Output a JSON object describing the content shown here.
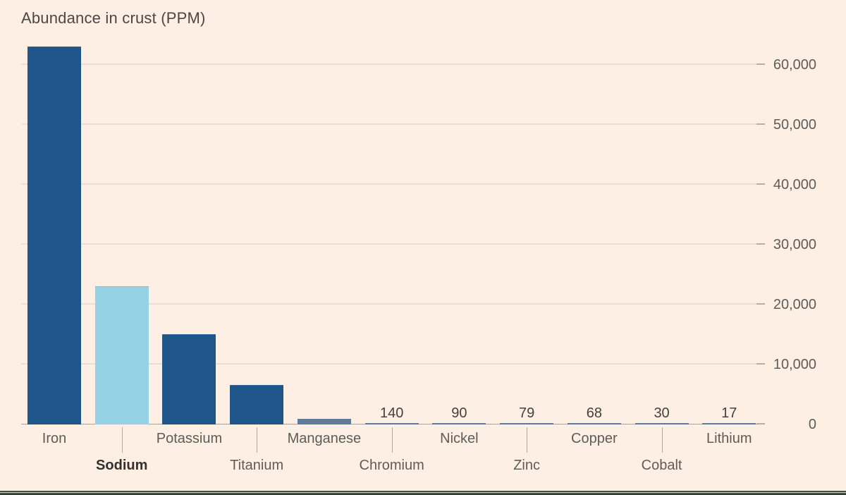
{
  "chart_data": {
    "type": "bar",
    "title": "Abundance in crust (PPM)",
    "xlabel": "",
    "ylabel": "",
    "ylim": [
      0,
      60000
    ],
    "grid": "horizontal-only",
    "y_ticks_position": "right",
    "categories": [
      "Iron",
      "Sodium",
      "Potassium",
      "Titanium",
      "Manganese",
      "Chromium",
      "Nickel",
      "Zinc",
      "Copper",
      "Cobalt",
      "Lithium"
    ],
    "values": [
      63000,
      23000,
      15000,
      6500,
      950,
      140,
      90,
      79,
      68,
      30,
      17
    ],
    "bars": [
      {
        "label": "Iron",
        "value": 63000,
        "label_row": 1,
        "highlighted": false,
        "value_label": ""
      },
      {
        "label": "Sodium",
        "value": 23000,
        "label_row": 2,
        "highlighted": true,
        "value_label": ""
      },
      {
        "label": "Potassium",
        "value": 15000,
        "label_row": 1,
        "highlighted": false,
        "value_label": ""
      },
      {
        "label": "Titanium",
        "value": 6500,
        "label_row": 2,
        "highlighted": false,
        "value_label": ""
      },
      {
        "label": "Manganese",
        "value": 950,
        "label_row": 1,
        "highlighted": false,
        "value_label": ""
      },
      {
        "label": "Chromium",
        "value": 140,
        "label_row": 2,
        "highlighted": false,
        "value_label": "140"
      },
      {
        "label": "Nickel",
        "value": 90,
        "label_row": 1,
        "highlighted": false,
        "value_label": "90"
      },
      {
        "label": "Zinc",
        "value": 79,
        "label_row": 2,
        "highlighted": false,
        "value_label": "79"
      },
      {
        "label": "Copper",
        "value": 68,
        "label_row": 1,
        "highlighted": false,
        "value_label": "68"
      },
      {
        "label": "Cobalt",
        "value": 30,
        "label_row": 2,
        "highlighted": false,
        "value_label": "30"
      },
      {
        "label": "Lithium",
        "value": 17,
        "label_row": 1,
        "highlighted": false,
        "value_label": "17"
      }
    ],
    "y_axis_ticks": [
      {
        "value": 0,
        "label": "0"
      },
      {
        "value": 10000,
        "label": "10,000"
      },
      {
        "value": 20000,
        "label": "20,000"
      },
      {
        "value": 30000,
        "label": "30,000"
      },
      {
        "value": 40000,
        "label": "40,000"
      },
      {
        "value": 50000,
        "label": "50,000"
      },
      {
        "value": 60000,
        "label": "60,000"
      }
    ],
    "colors": {
      "background": "#fdefe4",
      "bar": "#20558a",
      "bar_highlight": "#94d2e4",
      "bar_small": "#5d7b9b",
      "gridline": "#eadfd4",
      "grid_tick": "#b9aea3",
      "axis_line": "#aba196",
      "leader_tick": "#b1a79c",
      "title_text": "#4c4742",
      "label_text": "#605b56",
      "label_text_bold": "#33302e",
      "value_label_text": "#45413d",
      "bottom_edge_dark": "#414e3e",
      "bottom_edge_light": "#ccd2bf",
      "bottom_edge_darkest": "#2c352b"
    }
  }
}
